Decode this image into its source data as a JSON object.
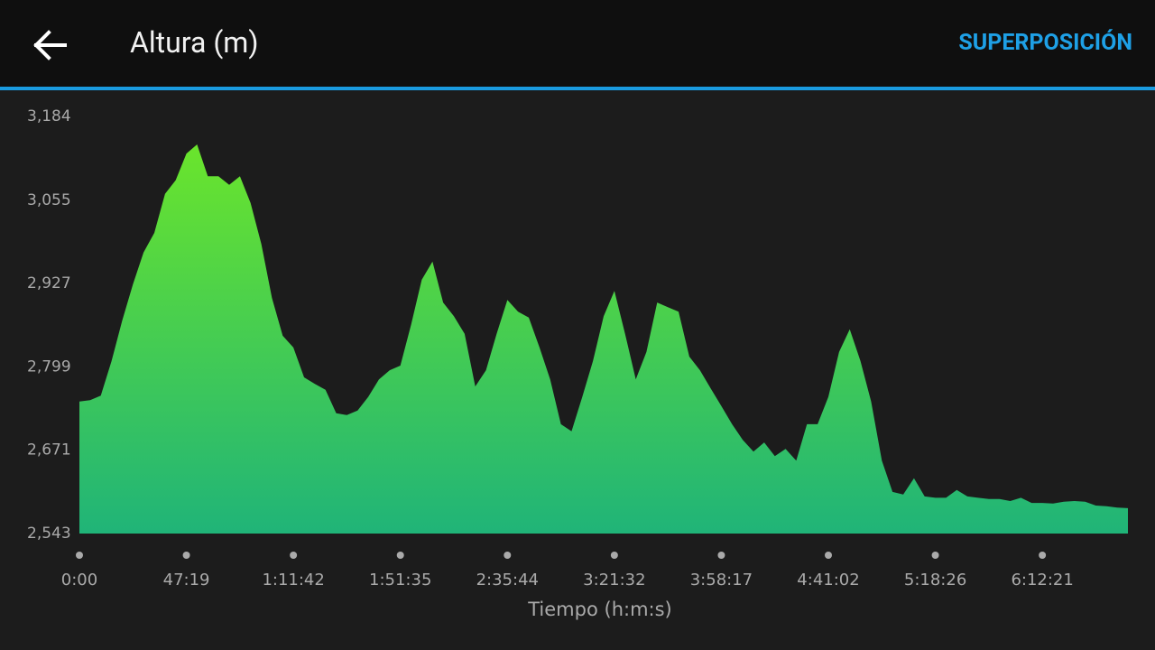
{
  "header": {
    "title": "Altura (m)",
    "action": "SUPERPOSICIÓN"
  },
  "chart_data": {
    "type": "area",
    "x_label": "Tiempo (h:m:s)",
    "categories": [
      "0:00",
      null,
      null,
      null,
      null,
      null,
      null,
      null,
      null,
      null,
      "47:19",
      null,
      null,
      null,
      null,
      null,
      null,
      null,
      null,
      null,
      "1:11:42",
      null,
      null,
      null,
      null,
      null,
      null,
      null,
      null,
      null,
      "1:51:35",
      null,
      null,
      null,
      null,
      null,
      null,
      null,
      null,
      null,
      "2:35:44",
      null,
      null,
      null,
      null,
      null,
      null,
      null,
      null,
      null,
      "3:21:32",
      null,
      null,
      null,
      null,
      null,
      null,
      null,
      null,
      null,
      "3:58:17",
      null,
      null,
      null,
      null,
      null,
      null,
      null,
      null,
      null,
      "4:41:02",
      null,
      null,
      null,
      null,
      null,
      null,
      null,
      null,
      null,
      "5:18:26",
      null,
      null,
      null,
      null,
      null,
      null,
      null,
      null,
      null,
      "6:12:21",
      null,
      null,
      null,
      null,
      null,
      null,
      null,
      null
    ],
    "values": [
      2746,
      2748,
      2755,
      2808,
      2870,
      2926,
      2975,
      3005,
      3065,
      3086,
      3127,
      3141,
      3092,
      3092,
      3079,
      3092,
      3051,
      2988,
      2905,
      2847,
      2829,
      2783,
      2773,
      2764,
      2728,
      2725,
      2732,
      2753,
      2780,
      2794,
      2801,
      2864,
      2933,
      2961,
      2898,
      2877,
      2850,
      2769,
      2794,
      2850,
      2902,
      2884,
      2875,
      2829,
      2780,
      2711,
      2700,
      2753,
      2808,
      2877,
      2916,
      2850,
      2780,
      2822,
      2898,
      2891,
      2884,
      2815,
      2794,
      2766,
      2739,
      2711,
      2687,
      2669,
      2683,
      2662,
      2673,
      2655,
      2711,
      2711,
      2753,
      2822,
      2857,
      2808,
      2746,
      2655,
      2607,
      2603,
      2628,
      2600,
      2598,
      2598,
      2610,
      2600,
      2598,
      2596,
      2596,
      2593,
      2598,
      2590,
      2590,
      2589,
      2592,
      2593,
      2592,
      2586,
      2585,
      2583,
      2582
    ],
    "gradient": [
      "#6ce62a",
      "#20b478"
    ],
    "ylim": [
      2543,
      3184
    ],
    "yticks": [
      {
        "value": 2543,
        "label": "2,543"
      },
      {
        "value": 2671,
        "label": "2,671"
      },
      {
        "value": 2799,
        "label": "2,799"
      },
      {
        "value": 2927,
        "label": "2,927"
      },
      {
        "value": 3055,
        "label": "3,055"
      },
      {
        "value": 3184,
        "label": "3,184"
      }
    ]
  }
}
